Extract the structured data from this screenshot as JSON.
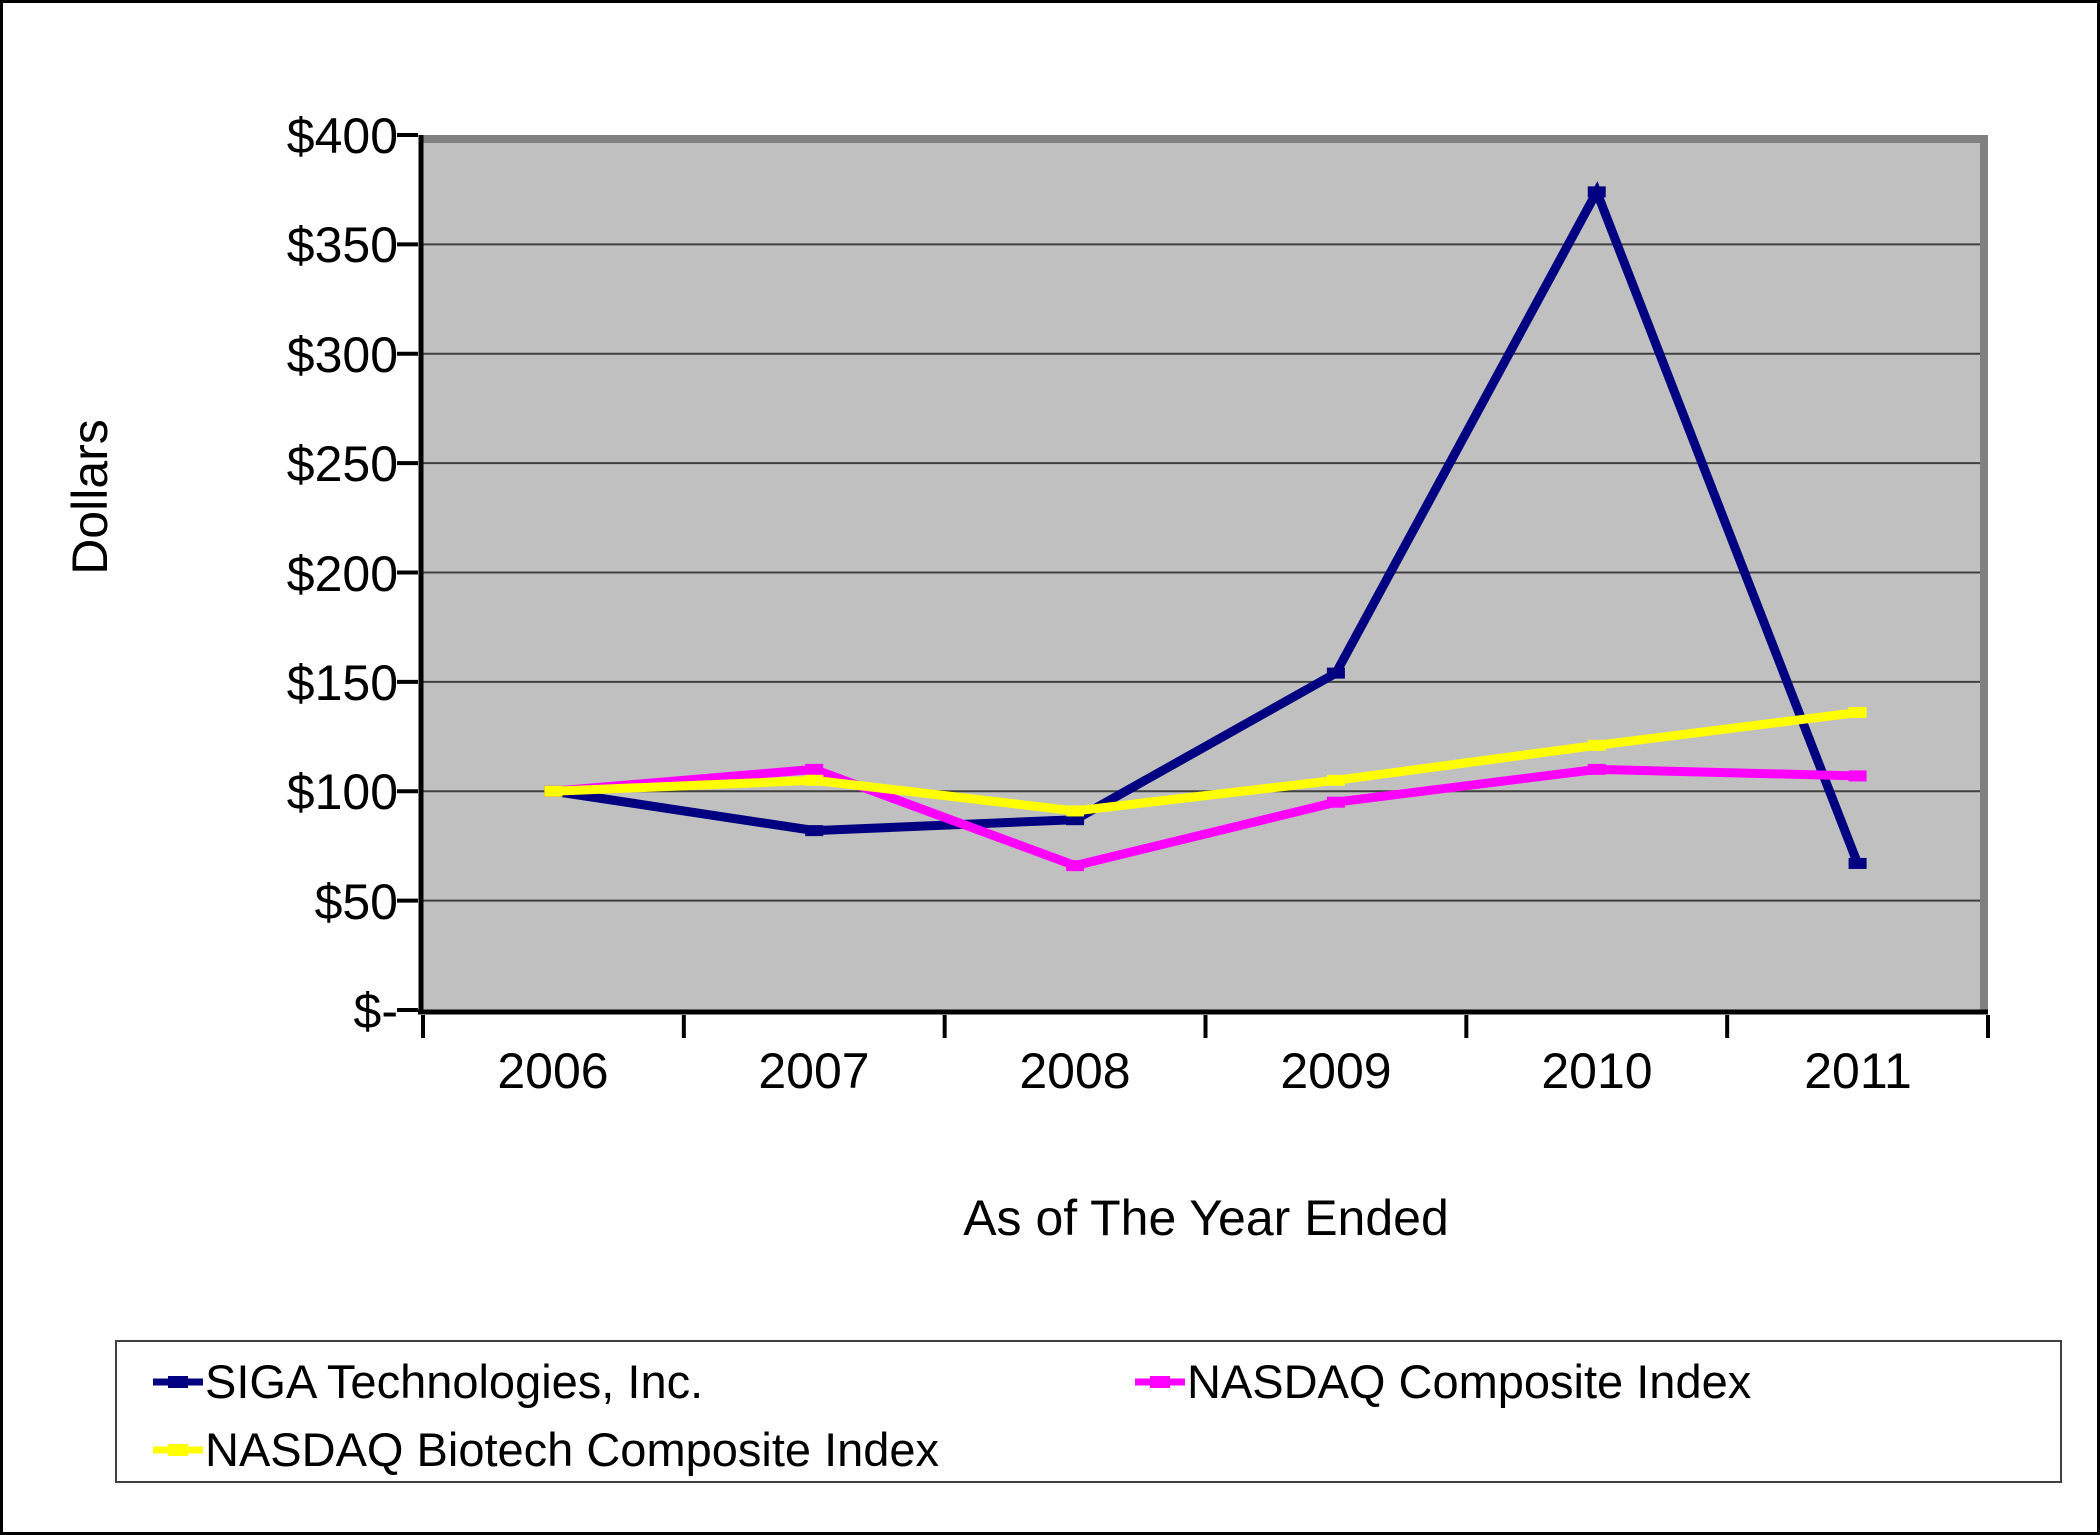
{
  "chart_data": {
    "type": "line",
    "title": "",
    "xlabel": "As of The Year Ended",
    "ylabel": "Dollars",
    "categories": [
      "2006",
      "2007",
      "2008",
      "2009",
      "2010",
      "2011"
    ],
    "y_ticks": [
      "$400",
      "$350",
      "$300",
      "$250",
      "$200",
      "$150",
      "$100",
      "$50",
      "$-"
    ],
    "ylim": [
      0,
      400
    ],
    "y_step": 50,
    "grid": true,
    "legend_position": "bottom",
    "plot_bg": "#C0C0C0",
    "plot_shadow": "#808080",
    "gridline_color": "#404040",
    "axis_color": "#000000",
    "series": [
      {
        "name": "SIGA Technologies, Inc.",
        "color": "#000080",
        "values": [
          100,
          82,
          87,
          154,
          374,
          67
        ]
      },
      {
        "name": "NASDAQ Composite Index",
        "color": "#FF00FF",
        "values": [
          100,
          110,
          66,
          95,
          110,
          107
        ]
      },
      {
        "name": "NASDAQ Biotech Composite Index",
        "color": "#FFFF00",
        "values": [
          100,
          105,
          91,
          105,
          121,
          136
        ]
      }
    ]
  }
}
